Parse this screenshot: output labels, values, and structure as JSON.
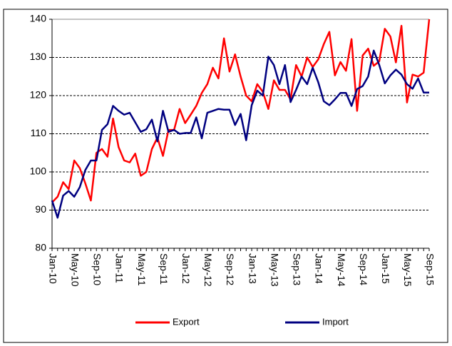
{
  "chart_data": {
    "type": "line",
    "categories": [
      "Jan-10",
      null,
      null,
      null,
      "May-10",
      null,
      null,
      null,
      "Sep-10",
      null,
      null,
      null,
      "Jan-11",
      null,
      null,
      null,
      "May-11",
      null,
      null,
      null,
      "Sep-11",
      null,
      null,
      null,
      "Jan-12",
      null,
      null,
      null,
      "May-12",
      null,
      null,
      null,
      "Sep-12",
      null,
      null,
      null,
      "Jan-13",
      null,
      null,
      null,
      "May-13",
      null,
      null,
      null,
      "Sep-13",
      null,
      null,
      null,
      "Jan-14",
      null,
      null,
      null,
      "May-14",
      null,
      null,
      null,
      "Sep-14",
      null,
      null,
      null,
      "Jan-15",
      null,
      null,
      null,
      "May-15",
      null,
      null,
      null,
      "Sep-15"
    ],
    "series": [
      {
        "name": "Export",
        "color": "#ff0000",
        "values": [
          92,
          93.5,
          97.3,
          95.5,
          103,
          101,
          97,
          92.5,
          105,
          106,
          104,
          114,
          106.5,
          103,
          102.5,
          104.8,
          99,
          100,
          106,
          109,
          104.2,
          111,
          111,
          116.5,
          112.8,
          115,
          117.3,
          120.7,
          123,
          127.3,
          124.5,
          135,
          126.3,
          130.8,
          125,
          120,
          118.5,
          123,
          121,
          116.5,
          124,
          121.5,
          121.5,
          119,
          128,
          125,
          130,
          127.5,
          129.5,
          133.5,
          136.7,
          125.3,
          128.8,
          126.5,
          134.8,
          116,
          130.5,
          132.3,
          127.8,
          129,
          137.5,
          135.5,
          128.7,
          138.3,
          118.2,
          125.5,
          125,
          126,
          140
        ]
      },
      {
        "name": "Import",
        "color": "#000080",
        "values": [
          92.5,
          88,
          93.8,
          95,
          93.5,
          96,
          100.5,
          103,
          103,
          111,
          112.5,
          117.3,
          116,
          115,
          115.5,
          113,
          110.5,
          111.2,
          113.7,
          108,
          116,
          110.5,
          111,
          110,
          110.2,
          110.2,
          114.3,
          108.8,
          115.5,
          116,
          116.5,
          116.3,
          116.3,
          112.3,
          115.2,
          108.3,
          117.5,
          121.3,
          120,
          130.2,
          128,
          123,
          128,
          118.3,
          121.5,
          125,
          123,
          127.3,
          123.5,
          118.5,
          117.5,
          119,
          120.7,
          120.7,
          117.3,
          121.7,
          122.5,
          125,
          131.8,
          128,
          123.2,
          125.3,
          126.8,
          125.5,
          123,
          121.8,
          124.5,
          120.8,
          120.8
        ]
      }
    ],
    "ylim": [
      80,
      140
    ],
    "yticks": [
      80,
      90,
      100,
      110,
      120,
      130,
      140
    ],
    "grid": true,
    "legend": "bottom"
  }
}
